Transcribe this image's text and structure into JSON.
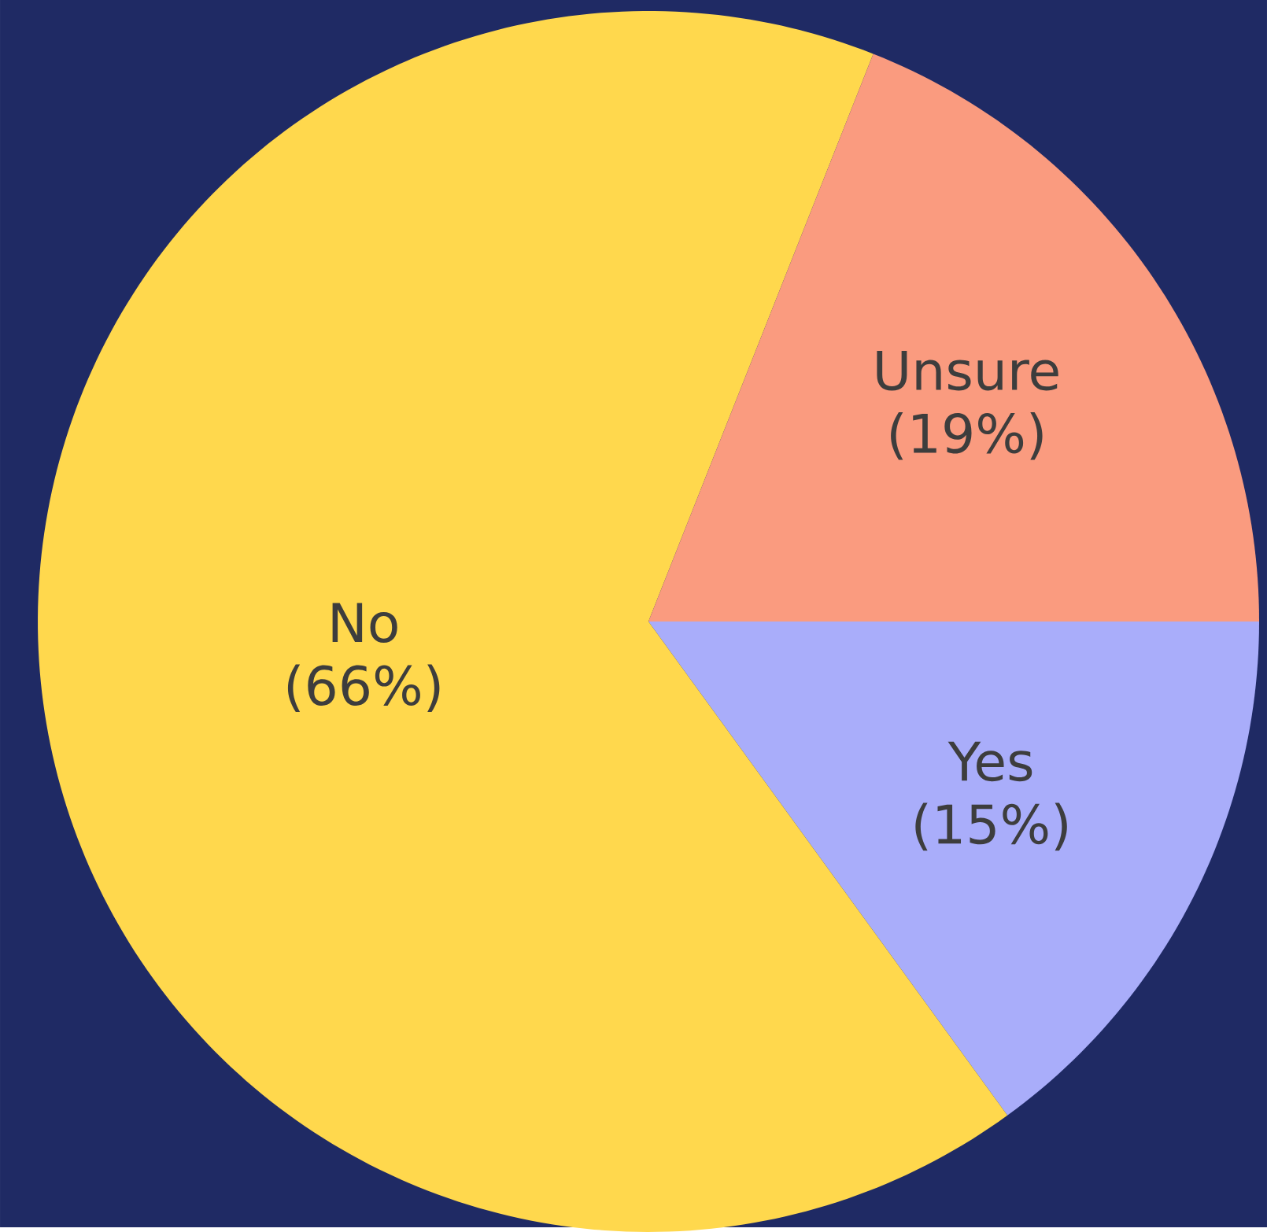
{
  "chart_data": {
    "type": "pie",
    "categories": [
      "Yes",
      "No",
      "Unsure"
    ],
    "values": [
      15,
      66,
      19
    ],
    "colors": [
      "#a9adfa",
      "#ffd84d",
      "#fa9b7f"
    ],
    "value_labels": [
      "(15%)",
      "(66%)",
      "(19%)"
    ]
  }
}
